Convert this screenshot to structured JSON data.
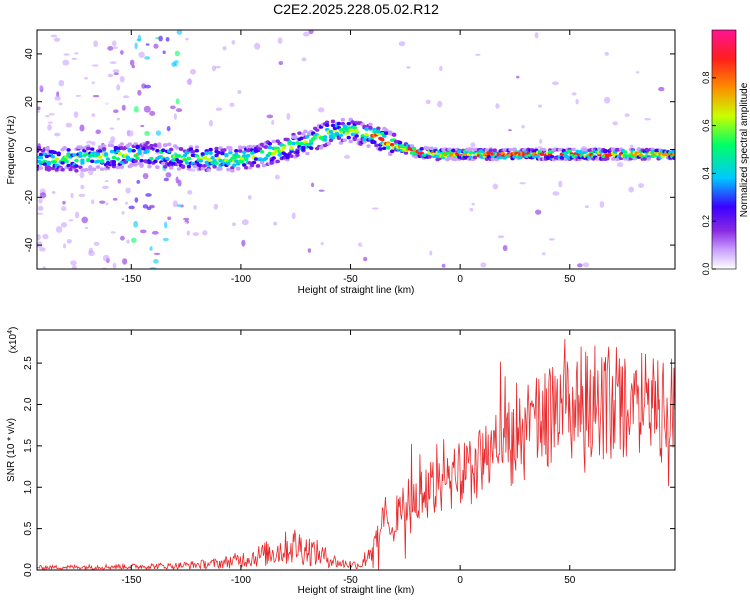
{
  "title": "C2E2.2025.228.05.02.R12",
  "colors": {
    "line": "#e8282a",
    "axis": "#000000",
    "colormap": [
      "#ffffff",
      "#c9a0ff",
      "#8a2be2",
      "#3b00ff",
      "#00c8ff",
      "#00ff66",
      "#c8ff00",
      "#ff8c00",
      "#ff1e1e",
      "#ff1493"
    ]
  },
  "chart_data": [
    {
      "type": "heatmap",
      "xlabel": "Height of straight line (km)",
      "ylabel": "Frequency (Hz)",
      "xlim": [
        -193,
        98
      ],
      "ylim": [
        -50,
        50
      ],
      "xticks": [
        -150,
        -100,
        -50,
        0,
        50
      ],
      "yticks": [
        -40,
        -20,
        0,
        20,
        40
      ],
      "colorbar": {
        "label": "Normalized spectral amplitude",
        "range": [
          0,
          1
        ],
        "ticks": [
          "0.0",
          "0.2",
          "0.4",
          "0.6",
          "0.8"
        ]
      },
      "ridge": {
        "x": [
          -190,
          -175,
          -160,
          -145,
          -130,
          -115,
          -100,
          -85,
          -70,
          -60,
          -50,
          -40,
          -30,
          -20,
          -10,
          0,
          20,
          40,
          60,
          80,
          98
        ],
        "y": [
          -4,
          -4,
          -3,
          -2,
          -3,
          -4,
          -4,
          -1,
          3,
          7,
          8,
          6,
          2,
          -1,
          -2,
          -2,
          -2,
          -2,
          -2,
          -2,
          -2
        ]
      }
    },
    {
      "type": "line",
      "xlabel": "Height of straight line (km)",
      "ylabel": "SNR (10 * v/v)",
      "yscale_label": "(x10",
      "yscale_exp": "4",
      "xlim": [
        -193,
        98
      ],
      "ylim": [
        0,
        2.9
      ],
      "xticks": [
        -150,
        -100,
        -50,
        0,
        50
      ],
      "yticks": [
        "0.0",
        "0.5",
        "1.0",
        "1.5",
        "2.0",
        "2.5"
      ],
      "envelope": {
        "x": [
          -193,
          -160,
          -130,
          -110,
          -95,
          -85,
          -75,
          -65,
          -55,
          -45,
          -40,
          -35,
          -25,
          -15,
          -5,
          5,
          15,
          25,
          35,
          45,
          55,
          65,
          75,
          85,
          98
        ],
        "y": [
          0.03,
          0.04,
          0.05,
          0.08,
          0.15,
          0.22,
          0.3,
          0.2,
          0.08,
          0.06,
          0.3,
          0.55,
          0.8,
          0.95,
          1.05,
          1.2,
          1.4,
          1.55,
          1.75,
          1.9,
          2.0,
          2.05,
          2.0,
          1.95,
          2.0
        ]
      }
    }
  ]
}
